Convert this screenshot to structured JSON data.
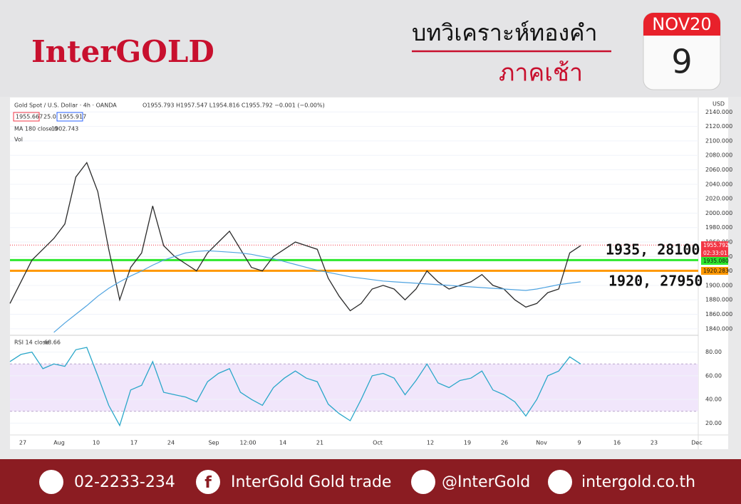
{
  "header": {
    "brand": "InterGOLD",
    "title": "บทวิเคราะห์ทองคำ",
    "subtitle": "ภาคเช้า",
    "calendar_month": "NOV20",
    "calendar_day": "9"
  },
  "legend": {
    "symbol": "Gold Spot / U.S. Dollar · 4h · OANDA",
    "ohlc": "O1955.793 H1957.547 L1954.816 C1955.792 −0.001 (−0.00%)",
    "bid": "1955.667",
    "spread": "25.0",
    "ask": "1955.917",
    "ma_label": "MA 180 close 0",
    "ma_value": "1902.743",
    "vol": "Vol",
    "rsi_label": "RSI 14 close",
    "rsi_value": "68.66",
    "currency": "USD"
  },
  "price_tags": {
    "last": "1955.792",
    "countdown": "02:33:01",
    "green": "1935.080",
    "orange": "1920.283"
  },
  "annotations": [
    "1935, 28100",
    "1920, 27950"
  ],
  "time_labels": [
    "27",
    "Aug",
    "10",
    "17",
    "24",
    "Sep",
    "12:00",
    "14",
    "21",
    "Oct",
    "12",
    "19",
    "26",
    "Nov",
    "9",
    "16",
    "23",
    "Dec"
  ],
  "footer": {
    "phone": "02-2233-234",
    "facebook": "InterGold Gold trade",
    "line": "@InterGold",
    "web": "intergold.co.th"
  },
  "chart_data": [
    {
      "type": "line",
      "ylim": [
        1830,
        2160
      ],
      "yticks": [
        {
          "value": 1840,
          "label": "1840.000"
        },
        {
          "value": 1860,
          "label": "1860.000"
        },
        {
          "value": 1880,
          "label": "1880.000"
        },
        {
          "value": 1900,
          "label": "1900.000"
        },
        {
          "value": 1920,
          "label": "1920.000"
        },
        {
          "value": 1940,
          "label": "1940.000"
        },
        {
          "value": 1960,
          "label": "1960.000"
        },
        {
          "value": 1980,
          "label": "1980.000"
        },
        {
          "value": 2000,
          "label": "2000.000"
        },
        {
          "value": 2020,
          "label": "2020.000"
        },
        {
          "value": 2040,
          "label": "2040.000"
        },
        {
          "value": 2060,
          "label": "2060.000"
        },
        {
          "value": 2080,
          "label": "2080.000"
        },
        {
          "value": 2100,
          "label": "2100.000"
        },
        {
          "value": 2120,
          "label": "2120.000"
        },
        {
          "value": 2140,
          "label": "2140.000"
        }
      ],
      "levels": [
        {
          "value": 1935.08,
          "color": "#2ee82e"
        },
        {
          "value": 1920.283,
          "color": "#ff9800"
        },
        {
          "value": 1955.792,
          "color": "#f23645"
        }
      ],
      "series": [
        {
          "name": "Gold Spot / U.S. Dollar",
          "color": "#2b2b2b",
          "values": [
            1875,
            1905,
            1935,
            1950,
            1965,
            1985,
            2050,
            2070,
            2030,
            1950,
            1880,
            1925,
            1945,
            2010,
            1955,
            1940,
            1930,
            1920,
            1945,
            1960,
            1975,
            1950,
            1925,
            1920,
            1940,
            1950,
            1960,
            1955,
            1950,
            1910,
            1885,
            1865,
            1875,
            1895,
            1900,
            1895,
            1880,
            1895,
            1920,
            1905,
            1895,
            1900,
            1905,
            1915,
            1900,
            1895,
            1880,
            1870,
            1875,
            1890,
            1895,
            1945,
            1955
          ]
        },
        {
          "name": "MA 180",
          "color": "#4fa3e0",
          "values": [
            null,
            null,
            null,
            null,
            1835,
            1848,
            1860,
            1872,
            1885,
            1896,
            1905,
            1913,
            1920,
            1928,
            1935,
            1940,
            1945,
            1947,
            1948,
            1947,
            1946,
            1945,
            1943,
            1940,
            1937,
            1933,
            1929,
            1925,
            1921,
            1918,
            1915,
            1912,
            1910,
            1908,
            1906,
            1905,
            1904,
            1903,
            1902,
            1901,
            1900,
            1899,
            1898,
            1897,
            1896,
            1895,
            1894,
            1893,
            1895,
            1898,
            1901,
            1903,
            1905
          ]
        }
      ]
    },
    {
      "type": "line",
      "ylim": [
        10,
        90
      ],
      "yticks": [
        {
          "value": 20,
          "label": "20.00"
        },
        {
          "value": 40,
          "label": "40.00"
        },
        {
          "value": 60,
          "label": "60.00"
        },
        {
          "value": 80,
          "label": "80.00"
        }
      ],
      "band": [
        30,
        70
      ],
      "series": [
        {
          "name": "RSI 14",
          "color": "#2aa7c9",
          "values": [
            72,
            78,
            80,
            66,
            70,
            68,
            82,
            84,
            60,
            35,
            18,
            48,
            52,
            72,
            46,
            44,
            42,
            38,
            55,
            62,
            66,
            46,
            40,
            35,
            50,
            58,
            64,
            58,
            55,
            36,
            28,
            22,
            40,
            60,
            62,
            58,
            44,
            56,
            70,
            54,
            50,
            56,
            58,
            64,
            48,
            44,
            38,
            26,
            40,
            60,
            64,
            76,
            70
          ]
        }
      ]
    }
  ]
}
